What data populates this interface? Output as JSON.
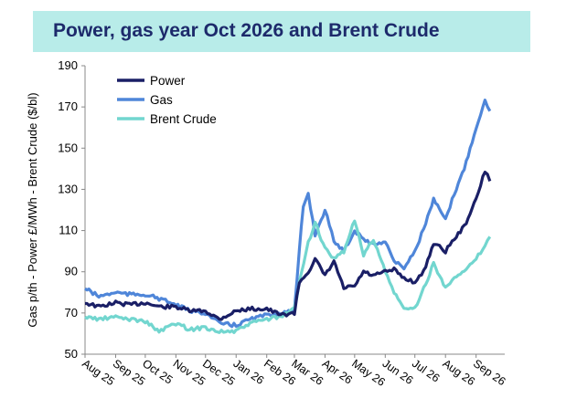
{
  "chart_data": {
    "type": "line",
    "title": "Power, gas year Oct 2026 and Brent Crude",
    "ylabel": "Gas p/th - Power £/MWh - Brent Crude ($/bl)",
    "ylim": [
      50,
      190
    ],
    "yticks": [
      50,
      70,
      90,
      110,
      130,
      150,
      170,
      190
    ],
    "x_range": [
      "2025-08-01",
      "2026-09-30"
    ],
    "x_ticks": [
      "Aug 25",
      "Sep 25",
      "Oct 25",
      "Nov 25",
      "Dec 25",
      "Jan 26",
      "Feb 26",
      "Mar 26",
      "Apr 26",
      "May 26",
      "Jun 26",
      "Jul 26",
      "Aug 26",
      "Sep 26"
    ],
    "legend": "top-left",
    "grid": false,
    "series": [
      {
        "name": "Power",
        "color": "#1a1f66",
        "points": [
          [
            "2025-08-01",
            75
          ],
          [
            "2025-08-15",
            73
          ],
          [
            "2025-09-01",
            75
          ],
          [
            "2025-09-15",
            74
          ],
          [
            "2025-10-01",
            75
          ],
          [
            "2025-10-15",
            73
          ],
          [
            "2025-11-01",
            73
          ],
          [
            "2025-11-15",
            71
          ],
          [
            "2025-12-01",
            71
          ],
          [
            "2025-12-15",
            67
          ],
          [
            "2026-01-01",
            71
          ],
          [
            "2026-01-15",
            72
          ],
          [
            "2026-02-01",
            72
          ],
          [
            "2026-02-15",
            69
          ],
          [
            "2026-03-01",
            70
          ],
          [
            "2026-03-06",
            85
          ],
          [
            "2026-03-15",
            90
          ],
          [
            "2026-03-22",
            96
          ],
          [
            "2026-04-01",
            88
          ],
          [
            "2026-04-10",
            95
          ],
          [
            "2026-04-20",
            82
          ],
          [
            "2026-05-01",
            83
          ],
          [
            "2026-05-10",
            90
          ],
          [
            "2026-05-20",
            88
          ],
          [
            "2026-06-01",
            90
          ],
          [
            "2026-06-10",
            91
          ],
          [
            "2026-06-20",
            87
          ],
          [
            "2026-07-01",
            85
          ],
          [
            "2026-07-10",
            90
          ],
          [
            "2026-07-20",
            104
          ],
          [
            "2026-08-01",
            100
          ],
          [
            "2026-08-10",
            106
          ],
          [
            "2026-08-20",
            112
          ],
          [
            "2026-09-01",
            125
          ],
          [
            "2026-09-10",
            139
          ],
          [
            "2026-09-15",
            134
          ]
        ]
      },
      {
        "name": "Gas",
        "color": "#4f86d9",
        "points": [
          [
            "2025-08-01",
            82
          ],
          [
            "2025-08-15",
            78
          ],
          [
            "2025-09-01",
            80
          ],
          [
            "2025-09-15",
            79
          ],
          [
            "2025-10-01",
            79
          ],
          [
            "2025-10-15",
            77
          ],
          [
            "2025-11-01",
            74
          ],
          [
            "2025-11-15",
            71
          ],
          [
            "2025-12-01",
            70
          ],
          [
            "2025-12-15",
            65
          ],
          [
            "2026-01-01",
            64
          ],
          [
            "2026-01-15",
            67
          ],
          [
            "2026-02-01",
            69
          ],
          [
            "2026-02-15",
            70
          ],
          [
            "2026-03-01",
            71
          ],
          [
            "2026-03-06",
            100
          ],
          [
            "2026-03-10",
            122
          ],
          [
            "2026-03-15",
            128
          ],
          [
            "2026-03-22",
            108
          ],
          [
            "2026-04-01",
            120
          ],
          [
            "2026-04-10",
            105
          ],
          [
            "2026-04-20",
            100
          ],
          [
            "2026-05-01",
            110
          ],
          [
            "2026-05-10",
            106
          ],
          [
            "2026-05-20",
            103
          ],
          [
            "2026-06-01",
            105
          ],
          [
            "2026-06-10",
            95
          ],
          [
            "2026-06-20",
            92
          ],
          [
            "2026-07-01",
            100
          ],
          [
            "2026-07-10",
            111
          ],
          [
            "2026-07-20",
            125
          ],
          [
            "2026-08-01",
            115
          ],
          [
            "2026-08-10",
            128
          ],
          [
            "2026-08-20",
            140
          ],
          [
            "2026-09-01",
            160
          ],
          [
            "2026-09-10",
            173
          ],
          [
            "2026-09-15",
            168
          ]
        ]
      },
      {
        "name": "Brent Crude",
        "color": "#72d6cf",
        "points": [
          [
            "2025-08-01",
            68
          ],
          [
            "2025-08-15",
            67
          ],
          [
            "2025-09-01",
            68
          ],
          [
            "2025-09-15",
            67
          ],
          [
            "2025-10-01",
            66
          ],
          [
            "2025-10-15",
            61
          ],
          [
            "2025-11-01",
            65
          ],
          [
            "2025-11-15",
            62
          ],
          [
            "2025-12-01",
            63
          ],
          [
            "2025-12-15",
            61
          ],
          [
            "2026-01-01",
            61
          ],
          [
            "2026-01-15",
            65
          ],
          [
            "2026-02-01",
            67
          ],
          [
            "2026-02-15",
            68
          ],
          [
            "2026-03-01",
            72
          ],
          [
            "2026-03-06",
            85
          ],
          [
            "2026-03-15",
            104
          ],
          [
            "2026-03-22",
            114
          ],
          [
            "2026-04-01",
            101
          ],
          [
            "2026-04-10",
            96
          ],
          [
            "2026-04-20",
            100
          ],
          [
            "2026-05-01",
            115
          ],
          [
            "2026-05-10",
            98
          ],
          [
            "2026-05-20",
            106
          ],
          [
            "2026-06-01",
            90
          ],
          [
            "2026-06-10",
            80
          ],
          [
            "2026-06-20",
            72
          ],
          [
            "2026-07-01",
            72
          ],
          [
            "2026-07-10",
            82
          ],
          [
            "2026-07-20",
            94
          ],
          [
            "2026-08-01",
            82
          ],
          [
            "2026-08-10",
            88
          ],
          [
            "2026-08-20",
            90
          ],
          [
            "2026-09-01",
            96
          ],
          [
            "2026-09-10",
            103
          ],
          [
            "2026-09-15",
            107
          ]
        ]
      }
    ]
  }
}
